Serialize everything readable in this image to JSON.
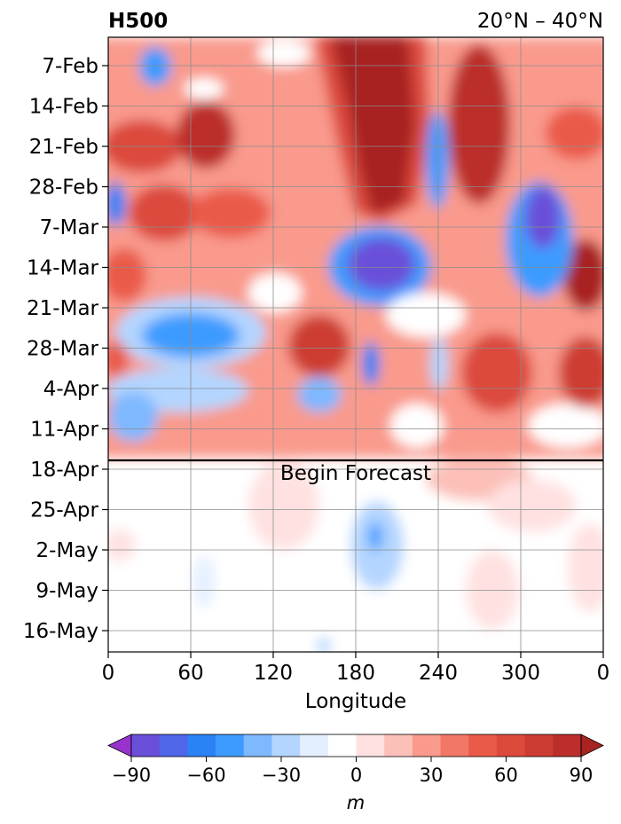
{
  "chart_data": {
    "type": "heatmap",
    "title_left": "H500",
    "title_right": "20°N – 40°N",
    "xlabel": "Longitude",
    "ylabel": "",
    "x_ticks": [
      "0",
      "60",
      "120",
      "180",
      "240",
      "300",
      "0"
    ],
    "y_ticks": [
      "7-Feb",
      "14-Feb",
      "21-Feb",
      "28-Feb",
      "7-Mar",
      "14-Mar",
      "21-Mar",
      "28-Mar",
      "4-Apr",
      "11-Apr",
      "18-Apr",
      "25-Apr",
      "2-May",
      "9-May",
      "16-May"
    ],
    "annotation": "Begin Forecast",
    "grid": true,
    "colorbar": {
      "label": "m",
      "ticks": [
        "−90",
        "−60",
        "−30",
        "0",
        "30",
        "60",
        "90"
      ],
      "levels": [
        -100,
        -90,
        -80,
        -70,
        -60,
        -50,
        -40,
        -30,
        -20,
        -10,
        10,
        20,
        30,
        40,
        50,
        60,
        70,
        80,
        90,
        100
      ],
      "colors": [
        "#9932CC",
        "#6A4FD9",
        "#4F66E8",
        "#2B82F5",
        "#3D9BFF",
        "#7EB8FF",
        "#B3D5FF",
        "#E3EFFF",
        "#FFFFFF",
        "#FFE1E1",
        "#FCC0B8",
        "#F99A8C",
        "#F27767",
        "#EA5A48",
        "#DC4A3C",
        "#CD3C33",
        "#BB2E2B",
        "#A82422"
      ],
      "extend": "both"
    }
  }
}
